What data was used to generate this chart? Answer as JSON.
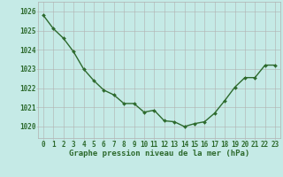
{
  "hours": [
    0,
    1,
    2,
    3,
    4,
    5,
    6,
    7,
    8,
    9,
    10,
    11,
    12,
    13,
    14,
    15,
    16,
    17,
    18,
    19,
    20,
    21,
    22,
    23
  ],
  "pressure": [
    1025.8,
    1025.1,
    1024.6,
    1023.9,
    1023.0,
    1022.4,
    1021.9,
    1021.65,
    1021.2,
    1021.2,
    1020.75,
    1020.85,
    1020.3,
    1020.25,
    1020.0,
    1020.15,
    1020.25,
    1020.7,
    1021.35,
    1022.05,
    1022.55,
    1022.55,
    1023.2,
    1023.2
  ],
  "line_color": "#2d6a2d",
  "marker": "D",
  "marker_size": 2.0,
  "background_color": "#c5eae6",
  "grid_color": "#b0b0b0",
  "xlabel": "Graphe pression niveau de la mer (hPa)",
  "xlabel_fontsize": 6.5,
  "ylabel_ticks": [
    1020,
    1021,
    1022,
    1023,
    1024,
    1025,
    1026
  ],
  "ylim": [
    1019.4,
    1026.5
  ],
  "xlim": [
    -0.5,
    23.5
  ],
  "tick_fontsize": 5.5,
  "axis_color": "#2d6a2d",
  "line_width": 1.0
}
